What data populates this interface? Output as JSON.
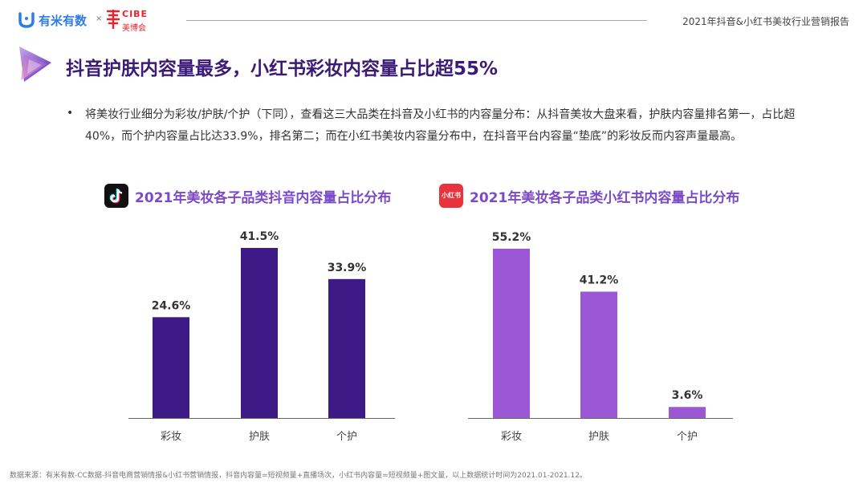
{
  "header": {
    "brand1": "有米有数",
    "separator": "×",
    "brand2_en": "CIBE",
    "brand2_cn": "美博会",
    "report_title": "2021年抖音&小红书美妆行业营销报告"
  },
  "main_title": "抖音护肤内容量最多，小红书彩妆内容量占比超55%",
  "bullet": {
    "marker": "•",
    "text": "将美妆行业细分为彩妆/护肤/个护（下同），查看这三大品类在抖音及小红书的内容量分布：从抖音美妆大盘来看，护肤内容量排名第一，占比超40%，而个护内容量占比达33.9%，排名第二；而在小红书美妆内容量分布中，在抖音平台内容量“垫底”的彩妆反而内容声量最高。"
  },
  "xhs_logo_text": "小红书",
  "colors": {
    "douyin_bar": "#3d1a86",
    "xhs_bar": "#9b57d6",
    "title": "#3b1a78",
    "chart_title": "#7b4ac9"
  },
  "chart_data": [
    {
      "type": "bar",
      "title": "2021年美妆各子品类抖音内容量占比分布",
      "platform_icon": "tiktok-icon",
      "categories": [
        "彩妆",
        "护肤",
        "个护"
      ],
      "values": [
        24.6,
        41.5,
        33.9
      ],
      "labels": [
        "24.6%",
        "41.5%",
        "33.9%"
      ],
      "ylim": [
        0,
        41.5
      ],
      "grid": false
    },
    {
      "type": "bar",
      "title": "2021年美妆各子品类小红书内容量占比分布",
      "platform_icon": "xiaohongshu-icon",
      "categories": [
        "彩妆",
        "护肤",
        "个护"
      ],
      "values": [
        55.2,
        41.2,
        3.6
      ],
      "labels": [
        "55.2%",
        "41.2%",
        "3.6%"
      ],
      "ylim": [
        0,
        55.2
      ],
      "grid": false
    }
  ],
  "footer": "数据来源：有米有数-CC数据-抖音电商营销情报&小红书营销情报，抖音内容量=短视频量+直播场次，小红书内容量=短视频量+图文量，以上数据统计时间为2021.01-2021.12。"
}
